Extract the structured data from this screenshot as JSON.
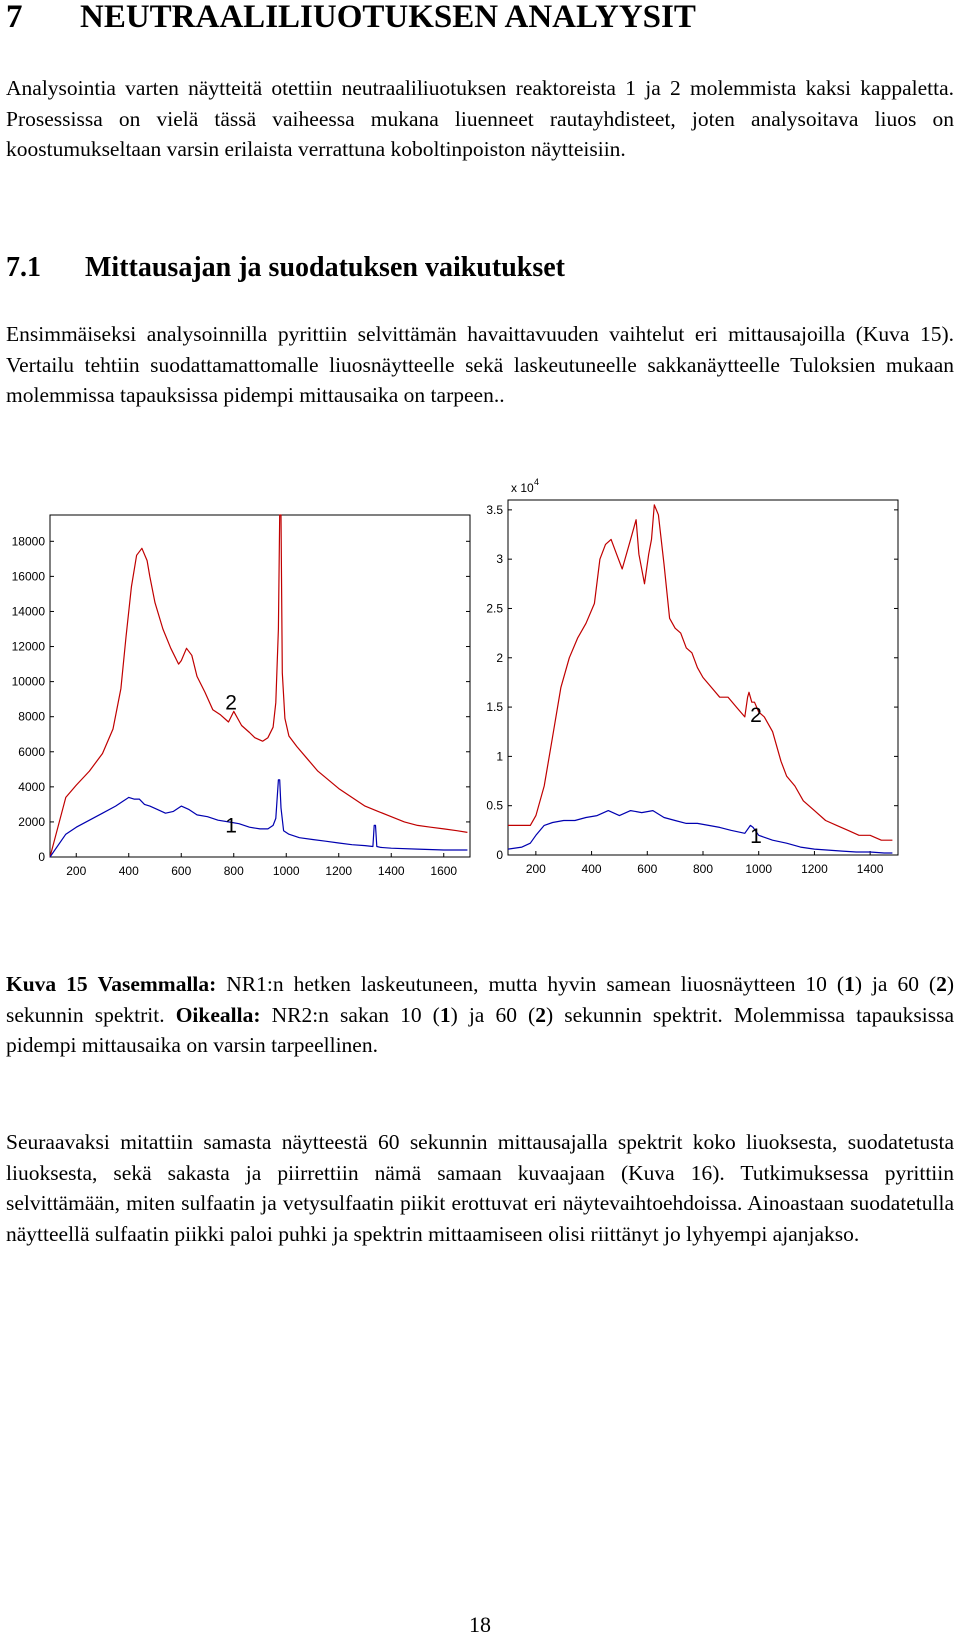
{
  "section_heading": {
    "number": "7",
    "title": "NEUTRAALILIUOTUKSEN ANALYYSIT"
  },
  "intro_paragraph": "Analysointia varten näytteitä otettiin neutraaliliuotuksen reaktoreista 1 ja 2 molemmista kaksi kappaletta. Prosessissa on vielä tässä vaiheessa mukana liuenneet rautayhdisteet, joten analysoitava liuos on koostumukseltaan varsin erilaista verrattuna koboltinpoiston näytteisiin.",
  "subsection_heading": {
    "number": "7.1",
    "title": "Mittausajan ja suodatuksen vaikutukset"
  },
  "subsection_paragraph": "Ensimmäiseksi analysoinnilla pyrittiin selvittämän havaittavuuden vaihtelut eri mittausajoilla (Kuva 15). Vertailu tehtiin suodattamattomalle liuosnäytteelle sekä laskeutuneelle sakkanäytteelle Tuloksien mukaan molemmissa tapauksissa pidempi mittausaika on tarpeen..",
  "figure_caption": {
    "label": "Kuva 15",
    "left_label": "Vasemmalla:",
    "left_text_1": " NR1:n hetken laskeutuneen, mutta hyvin samean liuosnäytteen 10 (",
    "left_n1": "1",
    "left_text_2": ") ja 60 (",
    "left_n2": "2",
    "left_text_3": ") sekunnin spektrit. ",
    "right_label": "Oikealla:",
    "right_text_1": " NR2:n sakan 10 (",
    "right_n1": "1",
    "right_text_2": ") ja 60 (",
    "right_n2": "2",
    "right_text_3": ") sekunnin spektrit. Molemmissa tapauksissa pidempi mittausaika on varsin tarpeellinen."
  },
  "after_paragraph": "Seuraavaksi mitattiin samasta näytteestä 60 sekunnin mittausajalla spektrit koko liuoksesta, suodatetusta liuoksesta, sekä sakasta ja piirrettiin nämä samaan kuvaajaan (Kuva 16). Tutkimuksessa pyrittiin selvittämään, miten sulfaatin ja vetysulfaatin piikit erottuvat eri näytevaihtoehdoissa. Ainoastaan suodatetulla näytteellä sulfaatin piikki paloi puhki ja spektrin mittaamiseen olisi riittänyt jo lyhyempi ajanjakso.",
  "page_number": "18",
  "colors": {
    "series_60s": "#c00000",
    "series_10s": "#0000b0"
  },
  "chart_data": [
    {
      "type": "line",
      "title": "",
      "xlabel": "",
      "ylabel": "",
      "xlim": [
        100,
        1700
      ],
      "ylim": [
        0,
        19500
      ],
      "xticks": [
        "200",
        "400",
        "600",
        "800",
        "1000",
        "1200",
        "1400",
        "1600"
      ],
      "yticks": [
        "0",
        "2000",
        "4000",
        "6000",
        "8000",
        "10000",
        "12000",
        "14000",
        "16000",
        "18000"
      ],
      "grid": false,
      "series": [
        {
          "color": "#c00000",
          "x": [
            100,
            160,
            200,
            250,
            300,
            340,
            370,
            390,
            410,
            430,
            450,
            470,
            480,
            500,
            530,
            560,
            590,
            600,
            620,
            640,
            660,
            690,
            720,
            750,
            780,
            800,
            830,
            860,
            880,
            910,
            930,
            950,
            960,
            970,
            975,
            980,
            985,
            995,
            1010,
            1040,
            1080,
            1120,
            1160,
            1200,
            1250,
            1300,
            1350,
            1400,
            1450,
            1500,
            1550,
            1600,
            1650,
            1690
          ],
          "y": [
            0,
            3400,
            4100,
            4900,
            5900,
            7300,
            9600,
            12600,
            15400,
            17200,
            17600,
            16900,
            16000,
            14500,
            13000,
            11900,
            11000,
            11200,
            11900,
            11500,
            10300,
            9400,
            8400,
            8100,
            7700,
            8300,
            7500,
            7100,
            6800,
            6600,
            6800,
            7400,
            8800,
            13000,
            19500,
            19500,
            10500,
            7900,
            6900,
            6300,
            5600,
            4900,
            4400,
            3900,
            3400,
            2900,
            2600,
            2300,
            2000,
            1800,
            1700,
            1600,
            1500,
            1400
          ]
        },
        {
          "color": "#0000b0",
          "x": [
            100,
            160,
            200,
            250,
            300,
            350,
            380,
            400,
            420,
            440,
            460,
            480,
            510,
            540,
            570,
            600,
            630,
            660,
            700,
            740,
            780,
            820,
            860,
            900,
            930,
            950,
            960,
            970,
            975,
            980,
            990,
            1010,
            1050,
            1100,
            1150,
            1200,
            1250,
            1300,
            1330,
            1335,
            1340,
            1345,
            1360,
            1400,
            1500,
            1600,
            1690
          ],
          "y": [
            0,
            1300,
            1700,
            2100,
            2500,
            2900,
            3200,
            3400,
            3300,
            3300,
            3000,
            2900,
            2700,
            2500,
            2600,
            2900,
            2700,
            2400,
            2300,
            2100,
            2000,
            1900,
            1700,
            1600,
            1600,
            1800,
            2200,
            4400,
            4400,
            2800,
            1500,
            1300,
            1100,
            1000,
            900,
            800,
            700,
            650,
            600,
            1800,
            1800,
            600,
            550,
            500,
            450,
            400,
            400
          ]
        }
      ],
      "annotations": [
        {
          "text": "2",
          "x": 790,
          "y": 8400
        },
        {
          "text": "1",
          "x": 790,
          "y": 1400
        }
      ]
    },
    {
      "type": "line",
      "title": "",
      "xlabel": "",
      "ylabel": "",
      "multiplier": "x 10",
      "multiplier_exponent": "4",
      "xlim": [
        100,
        1500
      ],
      "ylim": [
        0,
        3.6
      ],
      "xticks": [
        "200",
        "400",
        "600",
        "800",
        "1000",
        "1200",
        "1400"
      ],
      "yticks": [
        "0",
        "0.5",
        "1",
        "1.5",
        "2",
        "2.5",
        "3",
        "3.5"
      ],
      "grid": false,
      "series": [
        {
          "color": "#c00000",
          "x": [
            100,
            150,
            180,
            200,
            230,
            260,
            290,
            320,
            350,
            380,
            410,
            430,
            450,
            470,
            490,
            510,
            540,
            560,
            570,
            590,
            605,
            615,
            625,
            640,
            660,
            680,
            700,
            720,
            740,
            760,
            780,
            800,
            830,
            860,
            890,
            920,
            950,
            960,
            965,
            975,
            985,
            1000,
            1020,
            1050,
            1080,
            1100,
            1130,
            1160,
            1200,
            1240,
            1280,
            1320,
            1360,
            1400,
            1440,
            1480
          ],
          "y": [
            0.3,
            0.3,
            0.3,
            0.4,
            0.7,
            1.2,
            1.7,
            2.0,
            2.2,
            2.35,
            2.55,
            3.0,
            3.15,
            3.2,
            3.05,
            2.9,
            3.2,
            3.4,
            3.05,
            2.75,
            3.05,
            3.2,
            3.55,
            3.45,
            2.95,
            2.4,
            2.3,
            2.25,
            2.1,
            2.05,
            1.9,
            1.8,
            1.7,
            1.6,
            1.6,
            1.5,
            1.4,
            1.6,
            1.65,
            1.55,
            1.55,
            1.45,
            1.4,
            1.25,
            0.95,
            0.8,
            0.7,
            0.55,
            0.45,
            0.35,
            0.3,
            0.25,
            0.2,
            0.2,
            0.15,
            0.15
          ]
        },
        {
          "color": "#0000b0",
          "x": [
            100,
            150,
            180,
            200,
            230,
            260,
            300,
            340,
            380,
            420,
            460,
            500,
            540,
            580,
            620,
            660,
            700,
            740,
            780,
            820,
            860,
            900,
            950,
            970,
            980,
            1000,
            1050,
            1100,
            1150,
            1200,
            1250,
            1300,
            1350,
            1400,
            1450,
            1480
          ],
          "y": [
            0.06,
            0.08,
            0.12,
            0.2,
            0.3,
            0.33,
            0.35,
            0.35,
            0.38,
            0.4,
            0.45,
            0.4,
            0.45,
            0.43,
            0.45,
            0.38,
            0.35,
            0.32,
            0.32,
            0.3,
            0.28,
            0.25,
            0.22,
            0.3,
            0.28,
            0.2,
            0.15,
            0.12,
            0.08,
            0.06,
            0.05,
            0.04,
            0.03,
            0.03,
            0.02,
            0.02
          ]
        }
      ],
      "annotations": [
        {
          "text": "2",
          "x": 990,
          "y": 1.35
        },
        {
          "text": "1",
          "x": 990,
          "y": 0.12
        }
      ]
    }
  ]
}
